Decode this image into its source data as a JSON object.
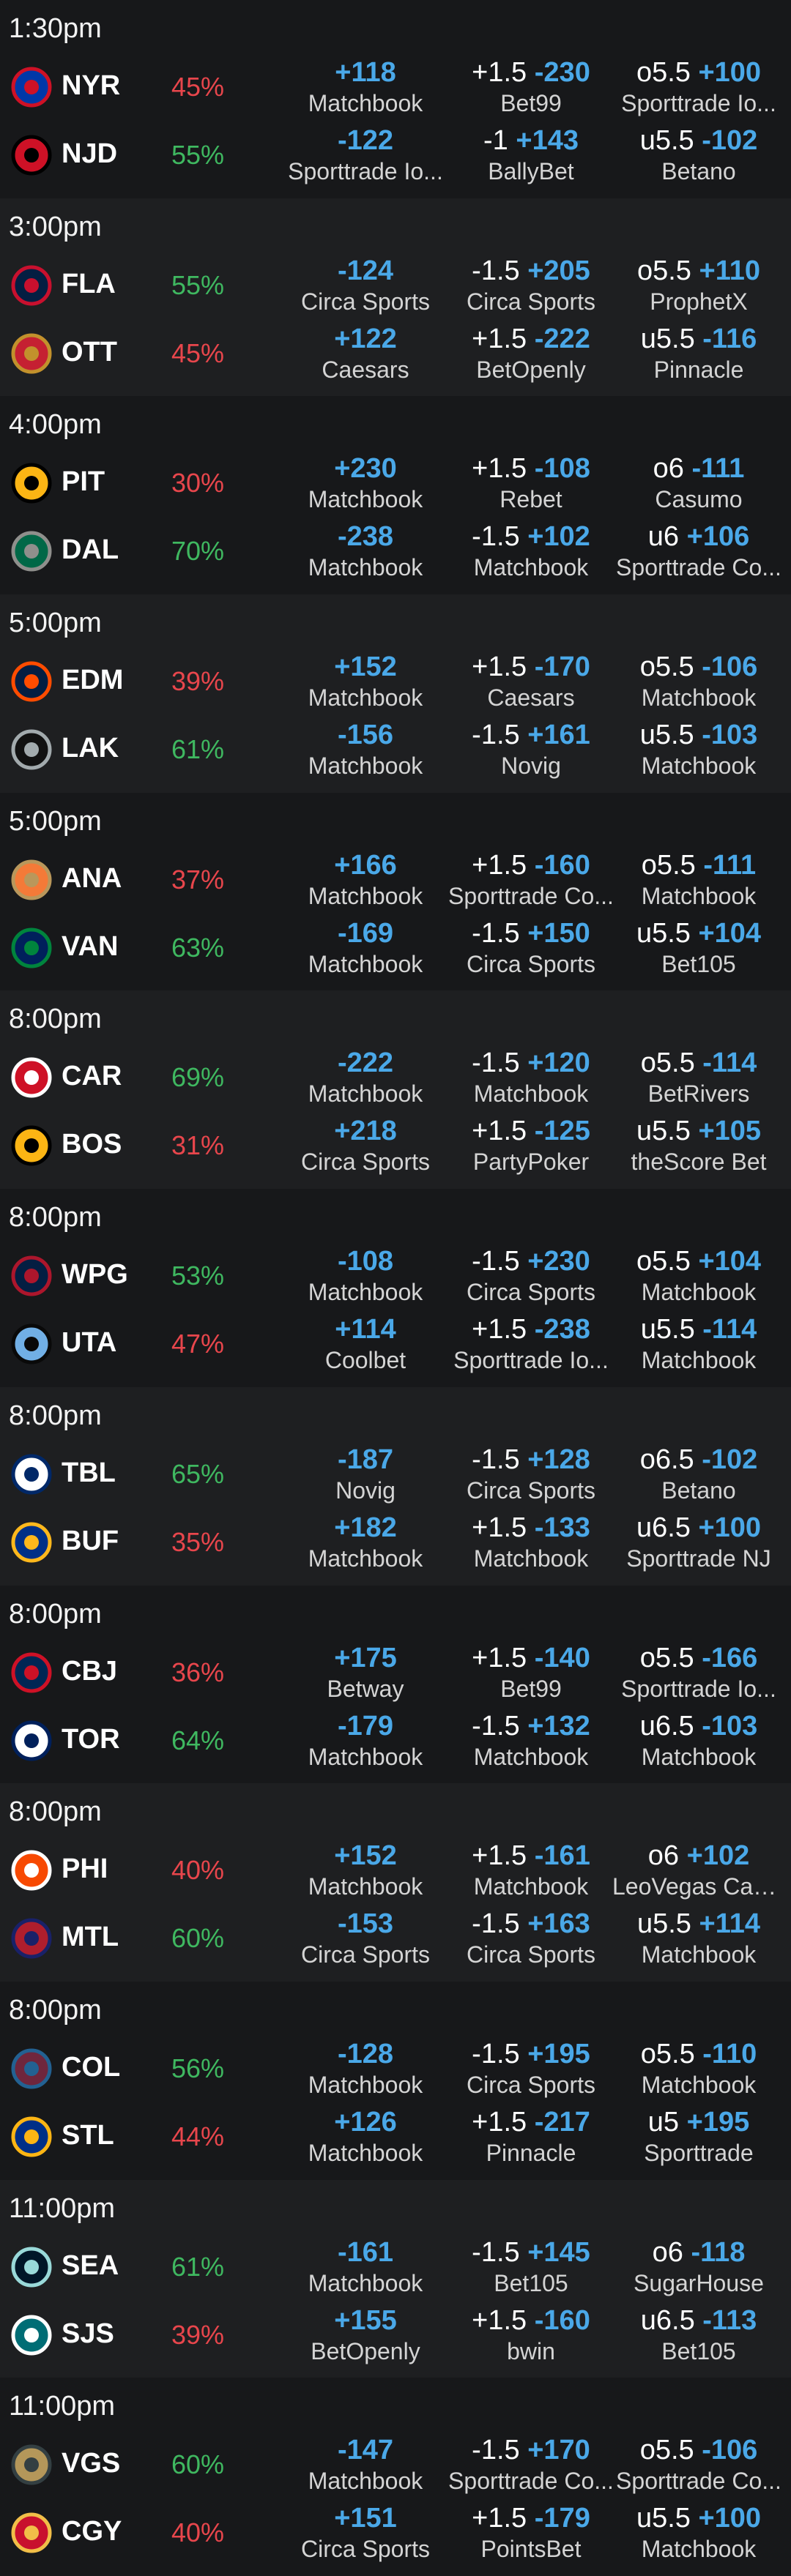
{
  "games": [
    {
      "time": "1:30pm",
      "teams": [
        {
          "abbr": "NYR",
          "logo_icon": "rangers-logo-icon",
          "pct": "45%",
          "fav": false,
          "colors": [
            "#0038a8",
            "#ce1126"
          ],
          "ml": {
            "odds": "+118",
            "book": "Matchbook"
          },
          "spread": {
            "line": "+1.5",
            "odds": "-230",
            "book": "Bet99"
          },
          "total": {
            "line": "o5.5",
            "odds": "+100",
            "book": "Sporttrade Io..."
          }
        },
        {
          "abbr": "NJD",
          "logo_icon": "devils-logo-icon",
          "pct": "55%",
          "fav": true,
          "colors": [
            "#ce1126",
            "#000000"
          ],
          "ml": {
            "odds": "-122",
            "book": "Sporttrade Io..."
          },
          "spread": {
            "line": "-1",
            "odds": "+143",
            "book": "BallyBet"
          },
          "total": {
            "line": "u5.5",
            "odds": "-102",
            "book": "Betano"
          }
        }
      ]
    },
    {
      "time": "3:00pm",
      "teams": [
        {
          "abbr": "FLA",
          "logo_icon": "panthers-logo-icon",
          "pct": "55%",
          "fav": true,
          "colors": [
            "#041e42",
            "#c8102e"
          ],
          "ml": {
            "odds": "-124",
            "book": "Circa Sports"
          },
          "spread": {
            "line": "-1.5",
            "odds": "+205",
            "book": "Circa Sports"
          },
          "total": {
            "line": "o5.5",
            "odds": "+110",
            "book": "ProphetX"
          }
        },
        {
          "abbr": "OTT",
          "logo_icon": "senators-logo-icon",
          "pct": "45%",
          "fav": false,
          "colors": [
            "#c52032",
            "#c2912c"
          ],
          "ml": {
            "odds": "+122",
            "book": "Caesars"
          },
          "spread": {
            "line": "+1.5",
            "odds": "-222",
            "book": "BetOpenly"
          },
          "total": {
            "line": "u5.5",
            "odds": "-116",
            "book": "Pinnacle"
          }
        }
      ]
    },
    {
      "time": "4:00pm",
      "teams": [
        {
          "abbr": "PIT",
          "logo_icon": "penguins-logo-icon",
          "pct": "30%",
          "fav": false,
          "colors": [
            "#fcb514",
            "#000000"
          ],
          "ml": {
            "odds": "+230",
            "book": "Matchbook"
          },
          "spread": {
            "line": "+1.5",
            "odds": "-108",
            "book": "Rebet"
          },
          "total": {
            "line": "o6",
            "odds": "-111",
            "book": "Casumo"
          }
        },
        {
          "abbr": "DAL",
          "logo_icon": "stars-logo-icon",
          "pct": "70%",
          "fav": true,
          "colors": [
            "#006847",
            "#8f8f8c"
          ],
          "ml": {
            "odds": "-238",
            "book": "Matchbook"
          },
          "spread": {
            "line": "-1.5",
            "odds": "+102",
            "book": "Matchbook"
          },
          "total": {
            "line": "u6",
            "odds": "+106",
            "book": "Sporttrade Co..."
          }
        }
      ]
    },
    {
      "time": "5:00pm",
      "teams": [
        {
          "abbr": "EDM",
          "logo_icon": "oilers-logo-icon",
          "pct": "39%",
          "fav": false,
          "colors": [
            "#041e42",
            "#ff4c00"
          ],
          "ml": {
            "odds": "+152",
            "book": "Matchbook"
          },
          "spread": {
            "line": "+1.5",
            "odds": "-170",
            "book": "Caesars"
          },
          "total": {
            "line": "o5.5",
            "odds": "-106",
            "book": "Matchbook"
          }
        },
        {
          "abbr": "LAK",
          "logo_icon": "kings-logo-icon",
          "pct": "61%",
          "fav": true,
          "colors": [
            "#111111",
            "#a2aaad"
          ],
          "ml": {
            "odds": "-156",
            "book": "Matchbook"
          },
          "spread": {
            "line": "-1.5",
            "odds": "+161",
            "book": "Novig"
          },
          "total": {
            "line": "u5.5",
            "odds": "-103",
            "book": "Matchbook"
          }
        }
      ]
    },
    {
      "time": "5:00pm",
      "teams": [
        {
          "abbr": "ANA",
          "logo_icon": "ducks-logo-icon",
          "pct": "37%",
          "fav": false,
          "colors": [
            "#f47a38",
            "#b9975b"
          ],
          "ml": {
            "odds": "+166",
            "book": "Matchbook"
          },
          "spread": {
            "line": "+1.5",
            "odds": "-160",
            "book": "Sporttrade Co..."
          },
          "total": {
            "line": "o5.5",
            "odds": "-111",
            "book": "Matchbook"
          }
        },
        {
          "abbr": "VAN",
          "logo_icon": "canucks-logo-icon",
          "pct": "63%",
          "fav": true,
          "colors": [
            "#00205b",
            "#00843d"
          ],
          "ml": {
            "odds": "-169",
            "book": "Matchbook"
          },
          "spread": {
            "line": "-1.5",
            "odds": "+150",
            "book": "Circa Sports"
          },
          "total": {
            "line": "u5.5",
            "odds": "+104",
            "book": "Bet105"
          }
        }
      ]
    },
    {
      "time": "8:00pm",
      "teams": [
        {
          "abbr": "CAR",
          "logo_icon": "hurricanes-logo-icon",
          "pct": "69%",
          "fav": true,
          "colors": [
            "#ce1126",
            "#ffffff"
          ],
          "ml": {
            "odds": "-222",
            "book": "Matchbook"
          },
          "spread": {
            "line": "-1.5",
            "odds": "+120",
            "book": "Matchbook"
          },
          "total": {
            "line": "o5.5",
            "odds": "-114",
            "book": "BetRivers"
          }
        },
        {
          "abbr": "BOS",
          "logo_icon": "bruins-logo-icon",
          "pct": "31%",
          "fav": false,
          "colors": [
            "#fcb514",
            "#000000"
          ],
          "ml": {
            "odds": "+218",
            "book": "Circa Sports"
          },
          "spread": {
            "line": "+1.5",
            "odds": "-125",
            "book": "PartyPoker"
          },
          "total": {
            "line": "u5.5",
            "odds": "+105",
            "book": "theScore Bet"
          }
        }
      ]
    },
    {
      "time": "8:00pm",
      "teams": [
        {
          "abbr": "WPG",
          "logo_icon": "jets-logo-icon",
          "pct": "53%",
          "fav": true,
          "colors": [
            "#041e42",
            "#ac162c"
          ],
          "ml": {
            "odds": "-108",
            "book": "Matchbook"
          },
          "spread": {
            "line": "-1.5",
            "odds": "+230",
            "book": "Circa Sports"
          },
          "total": {
            "line": "o5.5",
            "odds": "+104",
            "book": "Matchbook"
          }
        },
        {
          "abbr": "UTA",
          "logo_icon": "utah-logo-icon",
          "pct": "47%",
          "fav": false,
          "colors": [
            "#71afe5",
            "#090909"
          ],
          "ml": {
            "odds": "+114",
            "book": "Coolbet"
          },
          "spread": {
            "line": "+1.5",
            "odds": "-238",
            "book": "Sporttrade Io..."
          },
          "total": {
            "line": "u5.5",
            "odds": "-114",
            "book": "Matchbook"
          }
        }
      ]
    },
    {
      "time": "8:00pm",
      "teams": [
        {
          "abbr": "TBL",
          "logo_icon": "lightning-logo-icon",
          "pct": "65%",
          "fav": true,
          "colors": [
            "#ffffff",
            "#002868"
          ],
          "ml": {
            "odds": "-187",
            "book": "Novig"
          },
          "spread": {
            "line": "-1.5",
            "odds": "+128",
            "book": "Circa Sports"
          },
          "total": {
            "line": "o6.5",
            "odds": "-102",
            "book": "Betano"
          }
        },
        {
          "abbr": "BUF",
          "logo_icon": "sabres-logo-icon",
          "pct": "35%",
          "fav": false,
          "colors": [
            "#003087",
            "#ffb81c"
          ],
          "ml": {
            "odds": "+182",
            "book": "Matchbook"
          },
          "spread": {
            "line": "+1.5",
            "odds": "-133",
            "book": "Matchbook"
          },
          "total": {
            "line": "u6.5",
            "odds": "+100",
            "book": "Sporttrade NJ"
          }
        }
      ]
    },
    {
      "time": "8:00pm",
      "teams": [
        {
          "abbr": "CBJ",
          "logo_icon": "blue-jackets-logo-icon",
          "pct": "36%",
          "fav": false,
          "colors": [
            "#002654",
            "#ce1126"
          ],
          "ml": {
            "odds": "+175",
            "book": "Betway"
          },
          "spread": {
            "line": "+1.5",
            "odds": "-140",
            "book": "Bet99"
          },
          "total": {
            "line": "o5.5",
            "odds": "-166",
            "book": "Sporttrade Io..."
          }
        },
        {
          "abbr": "TOR",
          "logo_icon": "maple-leafs-logo-icon",
          "pct": "64%",
          "fav": true,
          "colors": [
            "#ffffff",
            "#00205b"
          ],
          "ml": {
            "odds": "-179",
            "book": "Matchbook"
          },
          "spread": {
            "line": "-1.5",
            "odds": "+132",
            "book": "Matchbook"
          },
          "total": {
            "line": "u6.5",
            "odds": "-103",
            "book": "Matchbook"
          }
        }
      ]
    },
    {
      "time": "8:00pm",
      "teams": [
        {
          "abbr": "PHI",
          "logo_icon": "flyers-logo-icon",
          "pct": "40%",
          "fav": false,
          "colors": [
            "#f74902",
            "#ffffff"
          ],
          "ml": {
            "odds": "+152",
            "book": "Matchbook"
          },
          "spread": {
            "line": "+1.5",
            "odds": "-161",
            "book": "Matchbook"
          },
          "total": {
            "line": "o6",
            "odds": "+102",
            "book": "LeoVegas Can..."
          }
        },
        {
          "abbr": "MTL",
          "logo_icon": "canadiens-logo-icon",
          "pct": "60%",
          "fav": true,
          "colors": [
            "#af1e2d",
            "#192168"
          ],
          "ml": {
            "odds": "-153",
            "book": "Circa Sports"
          },
          "spread": {
            "line": "-1.5",
            "odds": "+163",
            "book": "Circa Sports"
          },
          "total": {
            "line": "u5.5",
            "odds": "+114",
            "book": "Matchbook"
          }
        }
      ]
    },
    {
      "time": "8:00pm",
      "teams": [
        {
          "abbr": "COL",
          "logo_icon": "avalanche-logo-icon",
          "pct": "56%",
          "fav": true,
          "colors": [
            "#6f263d",
            "#236192"
          ],
          "ml": {
            "odds": "-128",
            "book": "Matchbook"
          },
          "spread": {
            "line": "-1.5",
            "odds": "+195",
            "book": "Circa Sports"
          },
          "total": {
            "line": "o5.5",
            "odds": "-110",
            "book": "Matchbook"
          }
        },
        {
          "abbr": "STL",
          "logo_icon": "blues-logo-icon",
          "pct": "44%",
          "fav": false,
          "colors": [
            "#002f87",
            "#fcb514"
          ],
          "ml": {
            "odds": "+126",
            "book": "Matchbook"
          },
          "spread": {
            "line": "+1.5",
            "odds": "-217",
            "book": "Pinnacle"
          },
          "total": {
            "line": "u5",
            "odds": "+195",
            "book": "Sporttrade"
          }
        }
      ]
    },
    {
      "time": "11:00pm",
      "teams": [
        {
          "abbr": "SEA",
          "logo_icon": "kraken-logo-icon",
          "pct": "61%",
          "fav": true,
          "colors": [
            "#001628",
            "#99d9d9"
          ],
          "ml": {
            "odds": "-161",
            "book": "Matchbook"
          },
          "spread": {
            "line": "-1.5",
            "odds": "+145",
            "book": "Bet105"
          },
          "total": {
            "line": "o6",
            "odds": "-118",
            "book": "SugarHouse"
          }
        },
        {
          "abbr": "SJS",
          "logo_icon": "sharks-logo-icon",
          "pct": "39%",
          "fav": false,
          "colors": [
            "#006d75",
            "#ffffff"
          ],
          "ml": {
            "odds": "+155",
            "book": "BetOpenly"
          },
          "spread": {
            "line": "+1.5",
            "odds": "-160",
            "book": "bwin"
          },
          "total": {
            "line": "u6.5",
            "odds": "-113",
            "book": "Bet105"
          }
        }
      ]
    },
    {
      "time": "11:00pm",
      "teams": [
        {
          "abbr": "VGS",
          "logo_icon": "golden-knights-logo-icon",
          "pct": "60%",
          "fav": true,
          "colors": [
            "#b4975a",
            "#333f42"
          ],
          "ml": {
            "odds": "-147",
            "book": "Matchbook"
          },
          "spread": {
            "line": "-1.5",
            "odds": "+170",
            "book": "Sporttrade Co..."
          },
          "total": {
            "line": "o5.5",
            "odds": "-106",
            "book": "Sporttrade Co..."
          }
        },
        {
          "abbr": "CGY",
          "logo_icon": "flames-logo-icon",
          "pct": "40%",
          "fav": false,
          "colors": [
            "#c8102e",
            "#f1be48"
          ],
          "ml": {
            "odds": "+151",
            "book": "Circa Sports"
          },
          "spread": {
            "line": "+1.5",
            "odds": "-179",
            "book": "PointsBet"
          },
          "total": {
            "line": "u5.5",
            "odds": "+100",
            "book": "Matchbook"
          }
        }
      ]
    }
  ]
}
